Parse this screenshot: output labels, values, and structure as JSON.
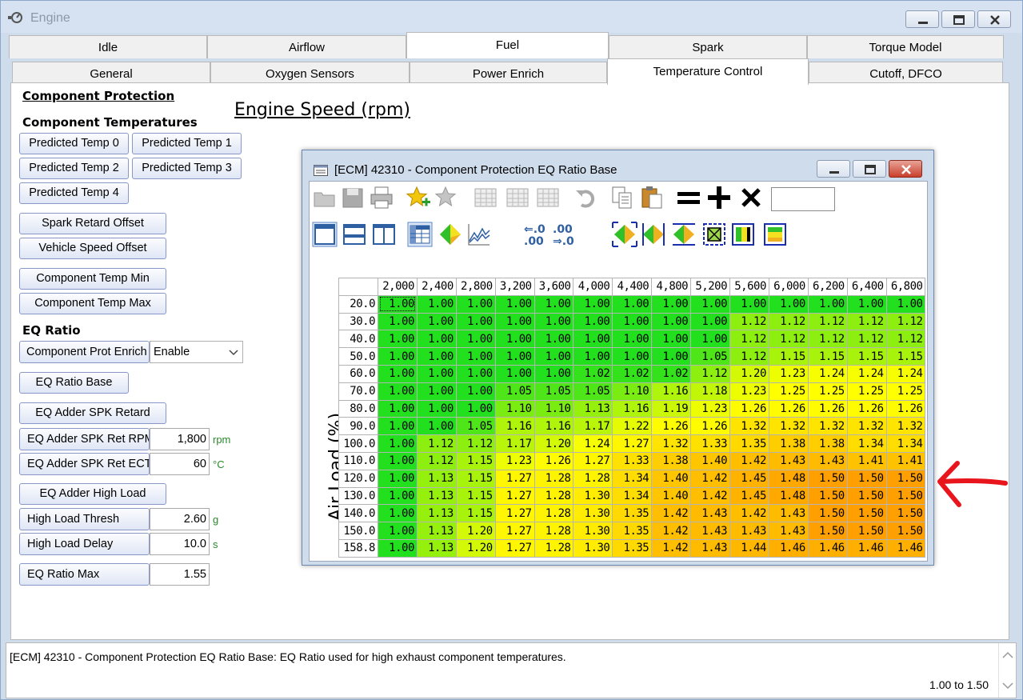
{
  "window": {
    "title": "Engine"
  },
  "tabs_top": [
    "Idle",
    "Airflow",
    "Fuel",
    "Spark",
    "Torque Model"
  ],
  "tabs_top_active": 2,
  "tabs_sub": [
    "General",
    "Oxygen Sensors",
    "Power Enrich",
    "Temperature Control",
    "Cutoff, DFCO"
  ],
  "tabs_sub_active": 3,
  "left": {
    "component_protection": "Component Protection",
    "component_temperatures": "Component Temperatures",
    "predicted_temp_0": "Predicted Temp 0",
    "predicted_temp_1": "Predicted Temp 1",
    "predicted_temp_2": "Predicted Temp 2",
    "predicted_temp_3": "Predicted Temp 3",
    "predicted_temp_4": "Predicted Temp 4",
    "spark_retard_offset": "Spark Retard Offset",
    "vehicle_speed_offset": "Vehicle Speed Offset",
    "component_temp_min": "Component Temp Min",
    "component_temp_max": "Component Temp Max",
    "eq_ratio": "EQ Ratio",
    "component_prot_enrich": "Component Prot Enrich",
    "component_prot_enrich_value": "Enable",
    "eq_ratio_base": "EQ Ratio Base",
    "eq_adder_spk_retard": "EQ Adder SPK Retard",
    "eq_adder_spk_ret_rpm": "EQ Adder SPK Ret RPM",
    "eq_adder_spk_ret_rpm_value": "1,800",
    "eq_adder_spk_ret_rpm_unit": "rpm",
    "eq_adder_spk_ret_ect": "EQ Adder SPK Ret ECT",
    "eq_adder_spk_ret_ect_value": "60",
    "eq_adder_spk_ret_ect_unit": "°C",
    "eq_adder_high_load": "EQ Adder High Load",
    "high_load_thresh": "High Load Thresh",
    "high_load_thresh_value": "2.60",
    "high_load_thresh_unit": "g",
    "high_load_delay": "High Load Delay",
    "high_load_delay_value": "10.0",
    "high_load_delay_unit": "s",
    "eq_ratio_max": "EQ Ratio Max",
    "eq_ratio_max_value": "1.55"
  },
  "table_window": {
    "title": "[ECM] 42310 - Component Protection EQ Ratio Base",
    "x_axis_title": "Engine Speed (rpm)",
    "y_axis_title": "Air Load (%)",
    "columns": [
      "2,000",
      "2,400",
      "2,800",
      "3,200",
      "3,600",
      "4,000",
      "4,400",
      "4,800",
      "5,200",
      "5,600",
      "6,000",
      "6,200",
      "6,400",
      "6,800"
    ],
    "rows": [
      "20.0",
      "30.0",
      "40.0",
      "50.0",
      "60.0",
      "70.0",
      "80.0",
      "90.0",
      "100.0",
      "110.0",
      "120.0",
      "130.0",
      "140.0",
      "150.0",
      "158.8"
    ],
    "values": [
      [
        "1.00",
        "1.00",
        "1.00",
        "1.00",
        "1.00",
        "1.00",
        "1.00",
        "1.00",
        "1.00",
        "1.00",
        "1.00",
        "1.00",
        "1.00",
        "1.00"
      ],
      [
        "1.00",
        "1.00",
        "1.00",
        "1.00",
        "1.00",
        "1.00",
        "1.00",
        "1.00",
        "1.00",
        "1.12",
        "1.12",
        "1.12",
        "1.12",
        "1.12"
      ],
      [
        "1.00",
        "1.00",
        "1.00",
        "1.00",
        "1.00",
        "1.00",
        "1.00",
        "1.00",
        "1.00",
        "1.12",
        "1.12",
        "1.12",
        "1.12",
        "1.12"
      ],
      [
        "1.00",
        "1.00",
        "1.00",
        "1.00",
        "1.00",
        "1.00",
        "1.00",
        "1.00",
        "1.05",
        "1.12",
        "1.15",
        "1.15",
        "1.15",
        "1.15"
      ],
      [
        "1.00",
        "1.00",
        "1.00",
        "1.00",
        "1.00",
        "1.02",
        "1.02",
        "1.02",
        "1.12",
        "1.20",
        "1.23",
        "1.24",
        "1.24",
        "1.24"
      ],
      [
        "1.00",
        "1.00",
        "1.00",
        "1.05",
        "1.05",
        "1.05",
        "1.10",
        "1.16",
        "1.18",
        "1.23",
        "1.25",
        "1.25",
        "1.25",
        "1.25"
      ],
      [
        "1.00",
        "1.00",
        "1.00",
        "1.10",
        "1.10",
        "1.13",
        "1.16",
        "1.19",
        "1.23",
        "1.26",
        "1.26",
        "1.26",
        "1.26",
        "1.26"
      ],
      [
        "1.00",
        "1.00",
        "1.05",
        "1.16",
        "1.16",
        "1.17",
        "1.22",
        "1.26",
        "1.26",
        "1.32",
        "1.32",
        "1.32",
        "1.32",
        "1.32"
      ],
      [
        "1.00",
        "1.12",
        "1.12",
        "1.17",
        "1.20",
        "1.24",
        "1.27",
        "1.32",
        "1.33",
        "1.35",
        "1.38",
        "1.38",
        "1.34",
        "1.34"
      ],
      [
        "1.00",
        "1.12",
        "1.15",
        "1.23",
        "1.26",
        "1.27",
        "1.33",
        "1.38",
        "1.40",
        "1.42",
        "1.43",
        "1.43",
        "1.41",
        "1.41"
      ],
      [
        "1.00",
        "1.13",
        "1.15",
        "1.27",
        "1.28",
        "1.28",
        "1.34",
        "1.40",
        "1.42",
        "1.45",
        "1.48",
        "1.50",
        "1.50",
        "1.50"
      ],
      [
        "1.00",
        "1.13",
        "1.15",
        "1.27",
        "1.28",
        "1.30",
        "1.34",
        "1.40",
        "1.42",
        "1.45",
        "1.48",
        "1.50",
        "1.50",
        "1.50"
      ],
      [
        "1.00",
        "1.13",
        "1.15",
        "1.27",
        "1.28",
        "1.30",
        "1.35",
        "1.42",
        "1.43",
        "1.42",
        "1.43",
        "1.50",
        "1.50",
        "1.50"
      ],
      [
        "1.00",
        "1.13",
        "1.20",
        "1.27",
        "1.28",
        "1.30",
        "1.35",
        "1.42",
        "1.43",
        "1.43",
        "1.43",
        "1.50",
        "1.50",
        "1.50"
      ],
      [
        "1.00",
        "1.13",
        "1.20",
        "1.27",
        "1.28",
        "1.30",
        "1.35",
        "1.42",
        "1.43",
        "1.44",
        "1.46",
        "1.46",
        "1.46",
        "1.46"
      ]
    ],
    "min_value": 1.0,
    "max_value": 1.5,
    "colors": {
      "low": "#22e01e",
      "mid": "#ffff00",
      "high": "#ffa000"
    }
  },
  "status": {
    "text": "[ECM] 42310 - Component Protection EQ Ratio Base: EQ Ratio used for high exhaust component temperatures.",
    "range": "1.00 to 1.50"
  },
  "colors": {
    "annotation_arrow": "#e8161c"
  }
}
